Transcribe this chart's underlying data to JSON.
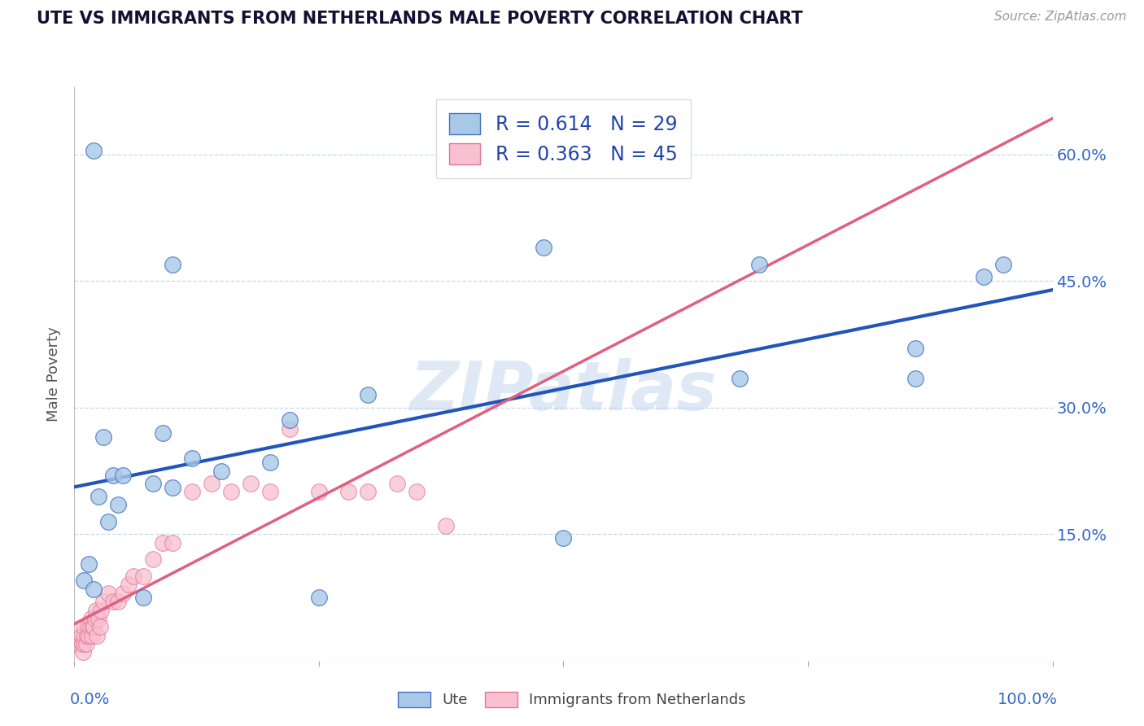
{
  "title": "UTE VS IMMIGRANTS FROM NETHERLANDS MALE POVERTY CORRELATION CHART",
  "source": "Source: ZipAtlas.com",
  "ylabel": "Male Poverty",
  "watermark": "ZIPatlas",
  "series1_name": "Ute",
  "series1_color": "#a8c8e8",
  "series1_edge_color": "#4472c4",
  "series1_line_color": "#2255bb",
  "series1_R": 0.614,
  "series1_N": 29,
  "series2_name": "Immigrants from Netherlands",
  "series2_color": "#f8c0d0",
  "series2_edge_color": "#e07898",
  "series2_line_color": "#e06080",
  "series2_R": 0.363,
  "series2_N": 45,
  "yticks": [
    0.0,
    0.15,
    0.3,
    0.45,
    0.6
  ],
  "ytick_labels": [
    "",
    "15.0%",
    "30.0%",
    "45.0%",
    "60.0%"
  ],
  "background_color": "#ffffff",
  "grid_color": "#c8d8ee",
  "title_color": "#111133",
  "axis_color": "#3366cc",
  "legend_text_color": "#2244aa",
  "ute_x": [
    0.02,
    0.48,
    0.93,
    0.7,
    0.86,
    0.3,
    0.03,
    0.04,
    0.05,
    0.08,
    0.1,
    0.12,
    0.15,
    0.2,
    0.22,
    0.025,
    0.035,
    0.045,
    0.015,
    0.01,
    0.02,
    0.5,
    0.25,
    0.09,
    0.68,
    0.95,
    0.86,
    0.1,
    0.07
  ],
  "ute_y": [
    0.605,
    0.49,
    0.455,
    0.47,
    0.335,
    0.315,
    0.265,
    0.22,
    0.22,
    0.21,
    0.205,
    0.24,
    0.225,
    0.235,
    0.285,
    0.195,
    0.165,
    0.185,
    0.115,
    0.095,
    0.085,
    0.145,
    0.075,
    0.27,
    0.335,
    0.47,
    0.37,
    0.47,
    0.075
  ],
  "nl_x": [
    0.005,
    0.007,
    0.008,
    0.009,
    0.01,
    0.01,
    0.01,
    0.012,
    0.013,
    0.014,
    0.015,
    0.016,
    0.017,
    0.018,
    0.019,
    0.02,
    0.021,
    0.022,
    0.023,
    0.025,
    0.026,
    0.027,
    0.03,
    0.035,
    0.04,
    0.045,
    0.05,
    0.055,
    0.06,
    0.07,
    0.08,
    0.09,
    0.1,
    0.12,
    0.14,
    0.16,
    0.18,
    0.2,
    0.22,
    0.25,
    0.28,
    0.3,
    0.33,
    0.35,
    0.38
  ],
  "nl_y": [
    0.02,
    0.03,
    0.02,
    0.01,
    0.02,
    0.03,
    0.04,
    0.02,
    0.03,
    0.04,
    0.03,
    0.04,
    0.05,
    0.03,
    0.04,
    0.04,
    0.05,
    0.06,
    0.03,
    0.05,
    0.04,
    0.06,
    0.07,
    0.08,
    0.07,
    0.07,
    0.08,
    0.09,
    0.1,
    0.1,
    0.12,
    0.14,
    0.14,
    0.2,
    0.21,
    0.2,
    0.21,
    0.2,
    0.275,
    0.2,
    0.2,
    0.2,
    0.21,
    0.2,
    0.16
  ]
}
